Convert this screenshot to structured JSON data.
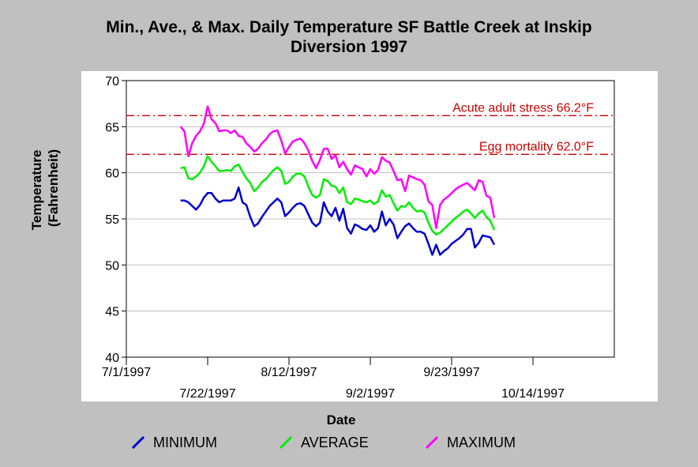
{
  "chart_data": {
    "type": "line",
    "title": "Min., Ave., & Max. Daily Temperature SF Battle Creek at Inskip\nDiversion 1997",
    "xlabel": "Date",
    "ylabel_lines": [
      "Temperature",
      "(Fahrenheit)"
    ],
    "ylim": [
      40,
      70
    ],
    "yticks": [
      "40",
      "45",
      "50",
      "55",
      "60",
      "65",
      "70"
    ],
    "xticks_upper": [
      "7/1/1997",
      "8/12/1997",
      "9/23/1997"
    ],
    "xticks_lower": [
      "7/22/1997",
      "9/2/1997",
      "10/14/1997"
    ],
    "grid": true,
    "legend_position": "bottom",
    "reference_lines": [
      {
        "label": "Acute adult stress 66.2°F",
        "value": 66.2,
        "color": "#cc0000"
      },
      {
        "label": "Egg mortality 62.0°F",
        "value": 62.0,
        "color": "#cc0000"
      }
    ],
    "x_dates": [
      "7/1/1997",
      "7/22/1997",
      "8/12/1997",
      "9/2/1997",
      "9/23/1997",
      "10/14/1997"
    ],
    "series": [
      {
        "name": "MINIMUM",
        "color": "#0000cc",
        "points": [
          [
            "7/15/1997",
            57.0
          ],
          [
            "7/16/1997",
            57.0
          ],
          [
            "7/17/1997",
            56.8
          ],
          [
            "7/18/1997",
            56.4
          ],
          [
            "7/19/1997",
            56.0
          ],
          [
            "7/20/1997",
            56.5
          ],
          [
            "7/21/1997",
            57.3
          ],
          [
            "7/22/1997",
            57.8
          ],
          [
            "7/23/1997",
            57.8
          ],
          [
            "7/24/1997",
            57.2
          ],
          [
            "7/25/1997",
            56.8
          ],
          [
            "7/26/1997",
            57.0
          ],
          [
            "7/27/1997",
            57.0
          ],
          [
            "7/28/1997",
            57.0
          ],
          [
            "7/29/1997",
            57.2
          ],
          [
            "7/30/1997",
            58.4
          ],
          [
            "7/31/1997",
            56.8
          ],
          [
            "8/1/1997",
            56.5
          ],
          [
            "8/2/1997",
            55.2
          ],
          [
            "8/3/1997",
            54.2
          ],
          [
            "8/4/1997",
            54.5
          ],
          [
            "8/5/1997",
            55.2
          ],
          [
            "8/6/1997",
            55.8
          ],
          [
            "8/7/1997",
            56.4
          ],
          [
            "8/8/1997",
            56.8
          ],
          [
            "8/9/1997",
            57.2
          ],
          [
            "8/10/1997",
            56.8
          ],
          [
            "8/11/1997",
            55.3
          ],
          [
            "8/12/1997",
            55.7
          ],
          [
            "8/13/1997",
            56.2
          ],
          [
            "8/14/1997",
            56.6
          ],
          [
            "8/15/1997",
            56.7
          ],
          [
            "8/16/1997",
            56.4
          ],
          [
            "8/17/1997",
            55.5
          ],
          [
            "8/18/1997",
            54.6
          ],
          [
            "8/19/1997",
            54.2
          ],
          [
            "8/20/1997",
            54.6
          ],
          [
            "8/21/1997",
            56.8
          ],
          [
            "8/22/1997",
            55.8
          ],
          [
            "8/23/1997",
            55.3
          ],
          [
            "8/24/1997",
            56.2
          ],
          [
            "8/25/1997",
            54.8
          ],
          [
            "8/26/1997",
            56.1
          ],
          [
            "8/27/1997",
            54.0
          ],
          [
            "8/28/1997",
            53.4
          ],
          [
            "8/29/1997",
            54.4
          ],
          [
            "8/30/1997",
            54.2
          ],
          [
            "8/31/1997",
            53.9
          ],
          [
            "9/1/1997",
            53.8
          ],
          [
            "9/2/1997",
            54.3
          ],
          [
            "9/3/1997",
            53.6
          ],
          [
            "9/4/1997",
            54.0
          ],
          [
            "9/5/1997",
            55.8
          ],
          [
            "9/6/1997",
            54.3
          ],
          [
            "9/7/1997",
            55.0
          ],
          [
            "9/8/1997",
            54.4
          ],
          [
            "9/9/1997",
            52.9
          ],
          [
            "9/10/1997",
            53.6
          ],
          [
            "9/11/1997",
            54.2
          ],
          [
            "9/12/1997",
            54.5
          ],
          [
            "9/13/1997",
            54.0
          ],
          [
            "9/14/1997",
            53.6
          ],
          [
            "9/15/1997",
            53.6
          ],
          [
            "9/16/1997",
            53.4
          ],
          [
            "9/17/1997",
            52.3
          ],
          [
            "9/18/1997",
            51.1
          ],
          [
            "9/19/1997",
            52.2
          ],
          [
            "9/20/1997",
            51.1
          ],
          [
            "9/21/1997",
            51.5
          ],
          [
            "9/22/1997",
            51.8
          ],
          [
            "9/23/1997",
            52.3
          ],
          [
            "9/24/1997",
            52.6
          ],
          [
            "9/25/1997",
            52.9
          ],
          [
            "9/26/1997",
            53.3
          ],
          [
            "9/27/1997",
            53.9
          ],
          [
            "9/28/1997",
            53.9
          ],
          [
            "9/29/1997",
            51.9
          ],
          [
            "9/30/1997",
            52.4
          ],
          [
            "10/1/1997",
            53.2
          ],
          [
            "10/2/1997",
            53.1
          ],
          [
            "10/3/1997",
            53.0
          ],
          [
            "10/4/1997",
            52.2
          ]
        ]
      },
      {
        "name": "AVERAGE",
        "color": "#00ee00",
        "points": [
          [
            "7/15/1997",
            60.5
          ],
          [
            "7/16/1997",
            60.6
          ],
          [
            "7/17/1997",
            59.4
          ],
          [
            "7/18/1997",
            59.3
          ],
          [
            "7/19/1997",
            59.6
          ],
          [
            "7/20/1997",
            60.0
          ],
          [
            "7/21/1997",
            60.7
          ],
          [
            "7/22/1997",
            61.8
          ],
          [
            "7/23/1997",
            61.2
          ],
          [
            "7/24/1997",
            60.7
          ],
          [
            "7/25/1997",
            60.2
          ],
          [
            "7/26/1997",
            60.2
          ],
          [
            "7/27/1997",
            60.3
          ],
          [
            "7/28/1997",
            60.2
          ],
          [
            "7/29/1997",
            60.7
          ],
          [
            "7/30/1997",
            60.9
          ],
          [
            "7/31/1997",
            60.1
          ],
          [
            "8/1/1997",
            59.4
          ],
          [
            "8/2/1997",
            58.9
          ],
          [
            "8/3/1997",
            58.0
          ],
          [
            "8/4/1997",
            58.4
          ],
          [
            "8/5/1997",
            59.0
          ],
          [
            "8/6/1997",
            59.3
          ],
          [
            "8/7/1997",
            59.8
          ],
          [
            "8/8/1997",
            60.3
          ],
          [
            "8/9/1997",
            60.6
          ],
          [
            "8/10/1997",
            60.2
          ],
          [
            "8/11/1997",
            58.8
          ],
          [
            "8/12/1997",
            59.0
          ],
          [
            "8/13/1997",
            59.6
          ],
          [
            "8/14/1997",
            59.9
          ],
          [
            "8/15/1997",
            59.9
          ],
          [
            "8/16/1997",
            59.6
          ],
          [
            "8/17/1997",
            58.5
          ],
          [
            "8/18/1997",
            57.6
          ],
          [
            "8/19/1997",
            57.3
          ],
          [
            "8/20/1997",
            57.6
          ],
          [
            "8/21/1997",
            59.3
          ],
          [
            "8/22/1997",
            59.1
          ],
          [
            "8/23/1997",
            58.6
          ],
          [
            "8/24/1997",
            58.5
          ],
          [
            "8/25/1997",
            57.8
          ],
          [
            "8/26/1997",
            58.4
          ],
          [
            "8/27/1997",
            56.8
          ],
          [
            "8/28/1997",
            56.6
          ],
          [
            "8/29/1997",
            57.2
          ],
          [
            "8/30/1997",
            57.1
          ],
          [
            "8/31/1997",
            56.9
          ],
          [
            "9/1/1997",
            56.8
          ],
          [
            "9/2/1997",
            57.0
          ],
          [
            "9/3/1997",
            56.6
          ],
          [
            "9/4/1997",
            56.9
          ],
          [
            "9/5/1997",
            58.1
          ],
          [
            "9/6/1997",
            57.4
          ],
          [
            "9/7/1997",
            57.6
          ],
          [
            "9/8/1997",
            56.7
          ],
          [
            "9/9/1997",
            55.9
          ],
          [
            "9/10/1997",
            56.4
          ],
          [
            "9/11/1997",
            56.3
          ],
          [
            "9/12/1997",
            56.8
          ],
          [
            "9/13/1997",
            56.2
          ],
          [
            "9/14/1997",
            55.8
          ],
          [
            "9/15/1997",
            55.9
          ],
          [
            "9/16/1997",
            55.7
          ],
          [
            "9/17/1997",
            54.6
          ],
          [
            "9/18/1997",
            53.7
          ],
          [
            "9/19/1997",
            53.3
          ],
          [
            "9/20/1997",
            53.5
          ],
          [
            "9/21/1997",
            53.9
          ],
          [
            "9/22/1997",
            54.3
          ],
          [
            "9/23/1997",
            54.7
          ],
          [
            "9/24/1997",
            55.1
          ],
          [
            "9/25/1997",
            55.4
          ],
          [
            "9/26/1997",
            55.8
          ],
          [
            "9/27/1997",
            56.0
          ],
          [
            "9/28/1997",
            55.6
          ],
          [
            "9/29/1997",
            55.1
          ],
          [
            "9/30/1997",
            55.6
          ],
          [
            "10/1/1997",
            55.9
          ],
          [
            "10/2/1997",
            55.2
          ],
          [
            "10/3/1997",
            54.8
          ],
          [
            "10/4/1997",
            53.8
          ]
        ]
      },
      {
        "name": "MAXIMUM",
        "color": "#ff00ff",
        "points": [
          [
            "7/15/1997",
            65.0
          ],
          [
            "7/16/1997",
            64.5
          ],
          [
            "7/17/1997",
            61.8
          ],
          [
            "7/18/1997",
            63.2
          ],
          [
            "7/19/1997",
            64.0
          ],
          [
            "7/20/1997",
            64.5
          ],
          [
            "7/21/1997",
            65.3
          ],
          [
            "7/22/1997",
            67.2
          ],
          [
            "7/23/1997",
            65.8
          ],
          [
            "7/24/1997",
            65.4
          ],
          [
            "7/25/1997",
            64.5
          ],
          [
            "7/26/1997",
            64.6
          ],
          [
            "7/27/1997",
            64.6
          ],
          [
            "7/28/1997",
            64.3
          ],
          [
            "7/29/1997",
            64.6
          ],
          [
            "7/30/1997",
            64.0
          ],
          [
            "7/31/1997",
            63.9
          ],
          [
            "8/1/1997",
            63.2
          ],
          [
            "8/2/1997",
            62.8
          ],
          [
            "8/3/1997",
            62.3
          ],
          [
            "8/4/1997",
            62.6
          ],
          [
            "8/5/1997",
            63.2
          ],
          [
            "8/6/1997",
            63.6
          ],
          [
            "8/7/1997",
            64.2
          ],
          [
            "8/8/1997",
            64.5
          ],
          [
            "8/9/1997",
            64.6
          ],
          [
            "8/10/1997",
            63.5
          ],
          [
            "8/11/1997",
            62.1
          ],
          [
            "8/12/1997",
            62.8
          ],
          [
            "8/13/1997",
            63.4
          ],
          [
            "8/14/1997",
            63.6
          ],
          [
            "8/15/1997",
            63.7
          ],
          [
            "8/16/1997",
            63.2
          ],
          [
            "8/17/1997",
            62.4
          ],
          [
            "8/18/1997",
            61.3
          ],
          [
            "8/19/1997",
            60.5
          ],
          [
            "8/20/1997",
            61.4
          ],
          [
            "8/21/1997",
            62.6
          ],
          [
            "8/22/1997",
            62.6
          ],
          [
            "8/23/1997",
            61.5
          ],
          [
            "8/24/1997",
            61.9
          ],
          [
            "8/25/1997",
            60.6
          ],
          [
            "8/26/1997",
            61.2
          ],
          [
            "8/27/1997",
            60.4
          ],
          [
            "8/28/1997",
            59.8
          ],
          [
            "8/29/1997",
            60.8
          ],
          [
            "8/30/1997",
            60.6
          ],
          [
            "8/31/1997",
            60.4
          ],
          [
            "9/1/1997",
            59.6
          ],
          [
            "9/2/1997",
            60.4
          ],
          [
            "9/3/1997",
            59.9
          ],
          [
            "9/4/1997",
            60.3
          ],
          [
            "9/5/1997",
            61.7
          ],
          [
            "9/6/1997",
            61.3
          ],
          [
            "9/7/1997",
            61.1
          ],
          [
            "9/8/1997",
            60.2
          ],
          [
            "9/9/1997",
            59.2
          ],
          [
            "9/10/1997",
            59.3
          ],
          [
            "9/11/1997",
            58.0
          ],
          [
            "9/12/1997",
            59.7
          ],
          [
            "9/13/1997",
            59.5
          ],
          [
            "9/14/1997",
            59.3
          ],
          [
            "9/15/1997",
            59.2
          ],
          [
            "9/16/1997",
            58.7
          ],
          [
            "9/17/1997",
            56.9
          ],
          [
            "9/18/1997",
            56.5
          ],
          [
            "9/19/1997",
            54.0
          ],
          [
            "9/20/1997",
            56.5
          ],
          [
            "9/21/1997",
            57.1
          ],
          [
            "9/22/1997",
            57.4
          ],
          [
            "9/23/1997",
            57.8
          ],
          [
            "9/24/1997",
            58.2
          ],
          [
            "9/25/1997",
            58.5
          ],
          [
            "9/26/1997",
            58.7
          ],
          [
            "9/27/1997",
            58.9
          ],
          [
            "9/28/1997",
            58.5
          ],
          [
            "9/29/1997",
            58.1
          ],
          [
            "9/30/1997",
            59.2
          ],
          [
            "10/1/1997",
            59.0
          ],
          [
            "10/2/1997",
            57.5
          ],
          [
            "10/3/1997",
            57.3
          ],
          [
            "10/4/1997",
            55.1
          ]
        ]
      }
    ]
  }
}
